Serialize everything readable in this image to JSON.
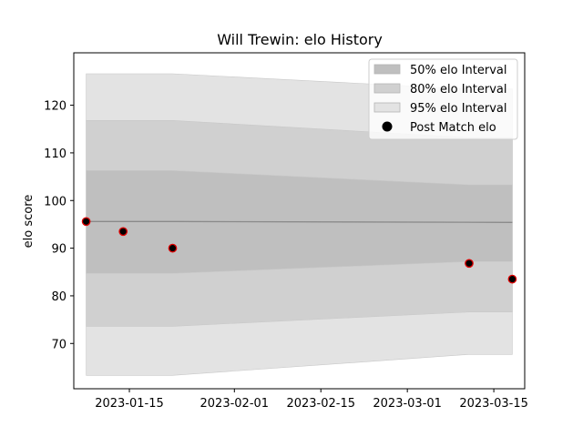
{
  "chart_data": {
    "type": "line",
    "title": "Will Trewin: elo History",
    "xlabel": "",
    "ylabel": "elo score",
    "x_axis_type": "date",
    "xlim": [
      "2023-01-06",
      "2023-03-20"
    ],
    "ylim": [
      60.5,
      131
    ],
    "x_ticks": [
      "2023-01-15",
      "2023-02-01",
      "2023-02-15",
      "2023-03-01",
      "2023-03-15"
    ],
    "y_ticks": [
      70,
      80,
      90,
      100,
      110,
      120
    ],
    "grid": false,
    "legend_position": "top-right",
    "mean_line": {
      "x": [
        "2023-01-08",
        "2023-01-22",
        "2023-03-18"
      ],
      "y": [
        95.6,
        95.6,
        95.4
      ]
    },
    "intervals": [
      {
        "name": "95% elo Interval",
        "color": "#e3e3e3",
        "x": [
          "2023-01-08",
          "2023-01-22",
          "2023-03-11",
          "2023-03-18"
        ],
        "lower": [
          63.3,
          63.3,
          67.7,
          67.7
        ],
        "upper": [
          126.6,
          126.6,
          123.4,
          123.4
        ]
      },
      {
        "name": "80% elo Interval",
        "color": "#d0d0d0",
        "x": [
          "2023-01-08",
          "2023-01-22",
          "2023-03-11",
          "2023-03-18"
        ],
        "lower": [
          73.6,
          73.6,
          76.6,
          76.6
        ],
        "upper": [
          116.8,
          116.8,
          113.2,
          113.2
        ]
      },
      {
        "name": "50% elo Interval",
        "color": "#bfbfbf",
        "x": [
          "2023-01-08",
          "2023-01-22",
          "2023-03-11",
          "2023-03-18"
        ],
        "lower": [
          84.7,
          84.7,
          87.2,
          87.2
        ],
        "upper": [
          106.3,
          106.3,
          103.3,
          103.3
        ]
      }
    ],
    "series": [
      {
        "name": "Post Match elo",
        "marker_fill": "#000000",
        "marker_edge": "#e00000",
        "x": [
          "2023-01-08",
          "2023-01-14",
          "2023-01-22",
          "2023-03-11",
          "2023-03-18"
        ],
        "y": [
          95.6,
          93.5,
          90.0,
          86.8,
          83.5
        ]
      }
    ],
    "legend": [
      {
        "label": "50% elo Interval",
        "kind": "patch",
        "color": "#bfbfbf"
      },
      {
        "label": "80% elo Interval",
        "kind": "patch",
        "color": "#d0d0d0"
      },
      {
        "label": "95% elo Interval",
        "kind": "patch",
        "color": "#e3e3e3"
      },
      {
        "label": "Post Match elo",
        "kind": "marker",
        "color": "#000000"
      }
    ]
  }
}
